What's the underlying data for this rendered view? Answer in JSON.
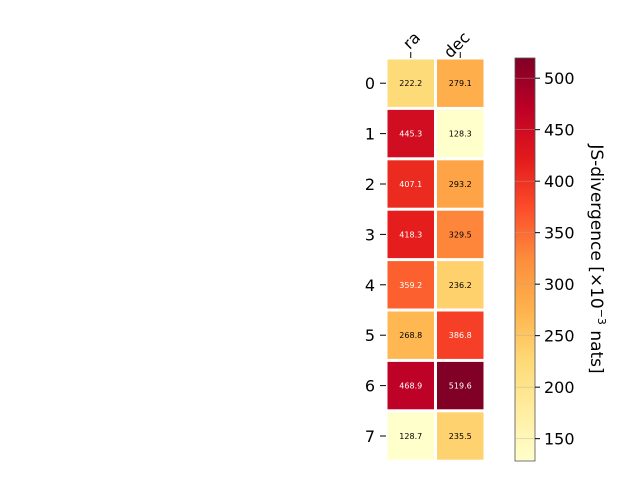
{
  "chart_data": {
    "type": "heatmap",
    "columns": [
      "ra",
      "dec"
    ],
    "rows": [
      "0",
      "1",
      "2",
      "3",
      "4",
      "5",
      "6",
      "7"
    ],
    "values": [
      [
        222.2,
        279.1
      ],
      [
        445.3,
        128.3
      ],
      [
        407.1,
        293.2
      ],
      [
        418.3,
        329.5
      ],
      [
        359.2,
        236.2
      ],
      [
        268.8,
        386.8
      ],
      [
        468.9,
        519.6
      ],
      [
        128.7,
        235.5
      ]
    ],
    "value_labels": [
      [
        "222.2",
        "279.1"
      ],
      [
        "445.3",
        "128.3"
      ],
      [
        "407.1",
        "293.2"
      ],
      [
        "418.3",
        "329.5"
      ],
      [
        "359.2",
        "236.2"
      ],
      [
        "268.8",
        "386.8"
      ],
      [
        "468.9",
        "519.6"
      ],
      [
        "128.7",
        "235.5"
      ]
    ],
    "colorbar": {
      "label": "JS-divergence [×10",
      "label_exponent": "−3",
      "label_suffix": " nats]",
      "range": [
        128.3,
        519.6
      ],
      "ticks": [
        150,
        200,
        250,
        300,
        350,
        400,
        450,
        500
      ],
      "tick_labels": [
        "150",
        "200",
        "250",
        "300",
        "350",
        "400",
        "450",
        "500"
      ],
      "colormap": "YlOrRd",
      "colormap_stops": [
        "#ffffcc",
        "#ffeda0",
        "#fed976",
        "#feb24c",
        "#fd8d3c",
        "#fc4e2a",
        "#e31a1c",
        "#bd0026",
        "#800026"
      ]
    },
    "column_label_position": "top",
    "title": "",
    "xlabel": "",
    "ylabel": ""
  }
}
